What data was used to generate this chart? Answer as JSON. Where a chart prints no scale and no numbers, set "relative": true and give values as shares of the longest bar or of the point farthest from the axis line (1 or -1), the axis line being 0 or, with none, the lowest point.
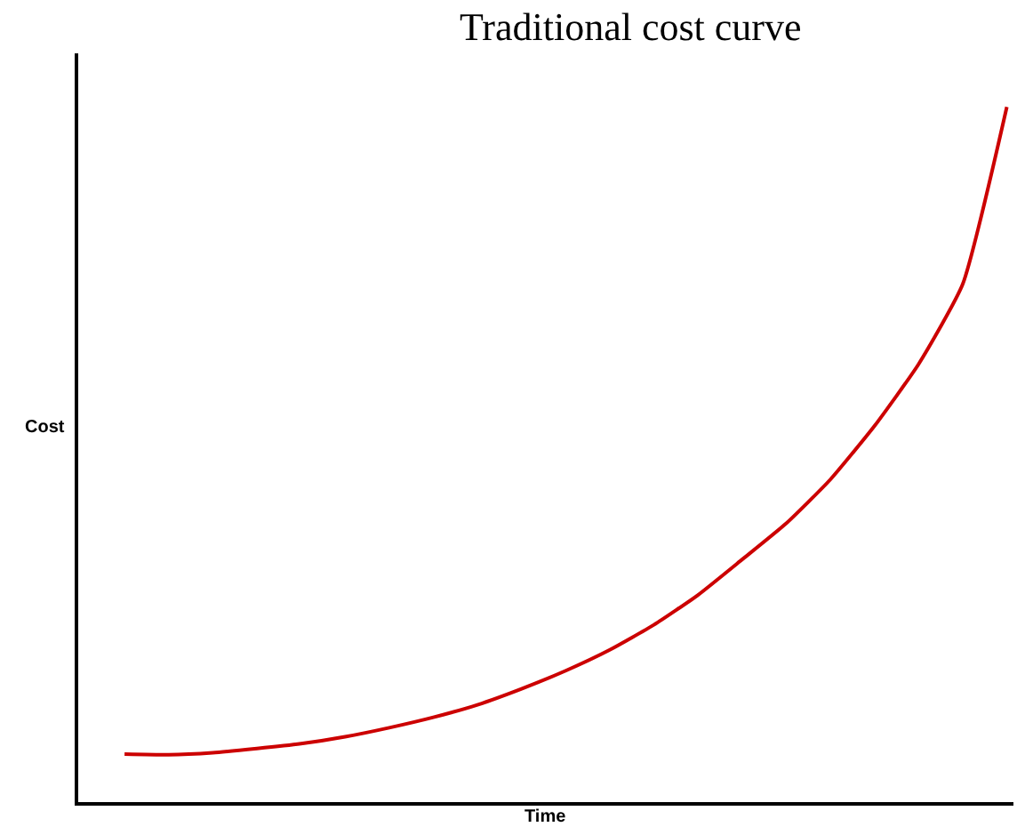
{
  "chart_data": {
    "type": "line",
    "title": "Traditional cost curve",
    "xlabel": "Time",
    "ylabel": "Cost",
    "relative": true,
    "legend": false,
    "marker": "none",
    "line_style": "solid",
    "categories": [
      null,
      null,
      null,
      null,
      null,
      null,
      null,
      null,
      null,
      null,
      null,
      null,
      null,
      null,
      null,
      null,
      null,
      null,
      null,
      null,
      null
    ],
    "series": [
      {
        "color": "#cc0000",
        "values": [
          0.069,
          0.068,
          0.071,
          0.077,
          0.084,
          0.094,
          0.107,
          0.122,
          0.14,
          0.163,
          0.189,
          0.219,
          0.255,
          0.298,
          0.349,
          0.401,
          0.464,
          0.541,
          0.63,
          0.745,
          1
        ]
      }
    ]
  }
}
